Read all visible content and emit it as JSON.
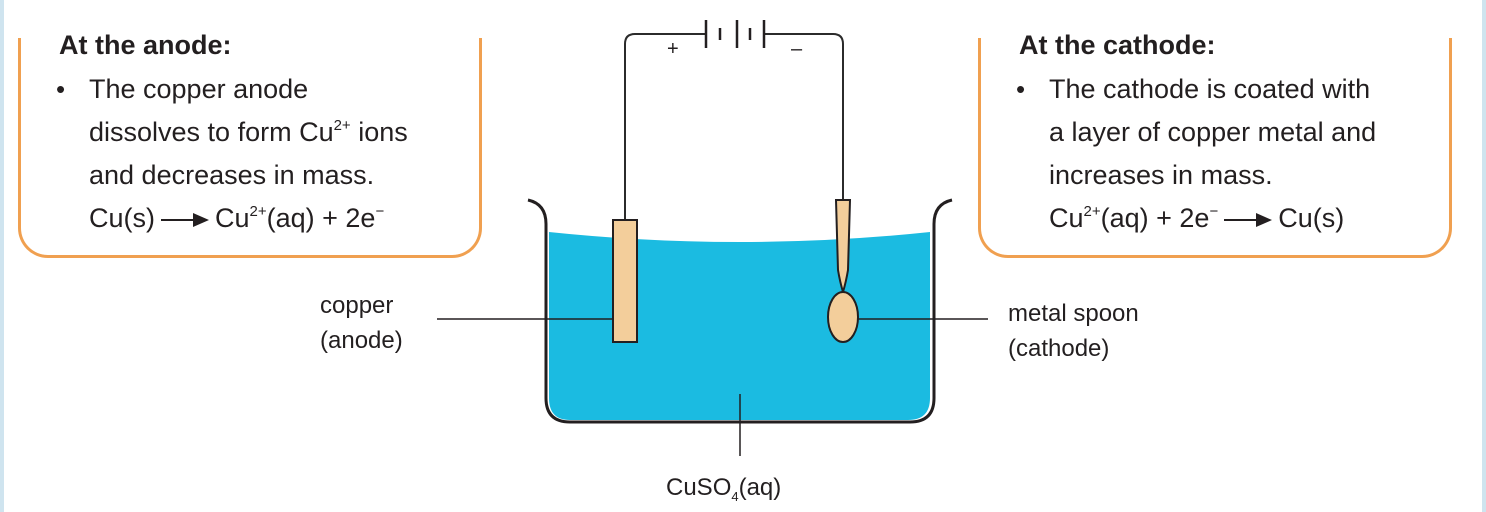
{
  "colors": {
    "box_border": "#f0a050",
    "solution": "#1bbbe1",
    "copper": "#f3ce9b",
    "wire": "#2b2b2b",
    "frame": "#cfe4ef"
  },
  "anode_box": {
    "title": "At the anode:",
    "bullet": "•",
    "line1": "The copper anode",
    "line2_pre": "dissolves to form Cu",
    "line2_sup": "2+",
    "line2_post": " ions",
    "line3": "and decreases in mass.",
    "eq_left": "Cu(s)",
    "eq_right_base": "Cu",
    "eq_right_sup": "2+",
    "eq_right_rest": "(aq) + 2e",
    "eq_right_sup2": "−"
  },
  "cathode_box": {
    "title": "At the cathode:",
    "bullet": "•",
    "line1": "The cathode is coated with",
    "line2": "a layer of copper metal and",
    "line3": "increases in mass.",
    "eq_left_base": "Cu",
    "eq_left_sup": "2+",
    "eq_left_rest": "(aq) + 2e",
    "eq_left_sup2": "−",
    "eq_right": "Cu(s)"
  },
  "battery": {
    "plus": "+",
    "minus": "–"
  },
  "labels": {
    "anode_line1": "copper",
    "anode_line2": "(anode)",
    "cathode_line1": "metal spoon",
    "cathode_line2": "(cathode)",
    "solution_base": "CuSO",
    "solution_sub": "4",
    "solution_rest": "(aq)"
  }
}
